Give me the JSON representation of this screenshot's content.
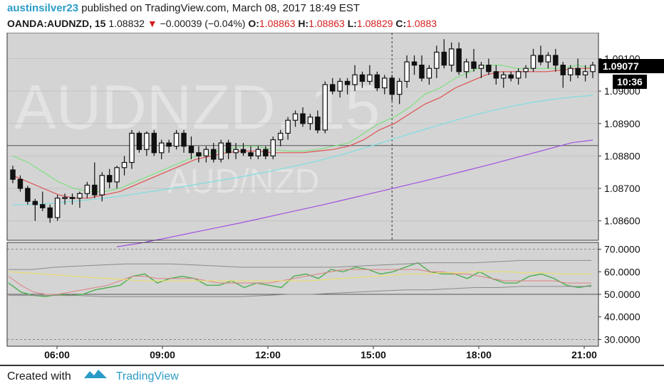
{
  "header": {
    "author": "austinsilver23",
    "published_text": "published on TradingView.com, March 08, 2017 18:49 EST",
    "symbol": "OANDA:AUDNZD, 15",
    "last": "1.08832",
    "change": "−0.00039 (−0.04%)",
    "o_label": "O:",
    "o_value": "1.08863",
    "h_label": "H:",
    "h_value": "1.08863",
    "l_label": "L:",
    "l_value": "1.08829",
    "c_label": "C:",
    "c_value": "1.0883"
  },
  "watermark": {
    "main": "AUDNZD, 15",
    "sub": "AUD/NZD"
  },
  "footer": {
    "created_with": "Created with",
    "brand": "TradingView"
  },
  "colors": {
    "up": "#111111",
    "down": "#111111",
    "ema_fast": "#7ee07e",
    "ema_mid": "#e05050",
    "ema_slow": "#7fdde0",
    "ema_long": "#a050e0",
    "rsi": "#4caf50",
    "rsi_signal": "#e08080",
    "rsi_mid": "#f0e060",
    "band": "#8a8a8a",
    "price_label_bg": "#000000",
    "pane_bg": "#d4d4d4"
  },
  "chart_data": [
    {
      "type": "candlestick",
      "title": "OANDA:AUDNZD, 15",
      "y_ticks": [
        "1.09100",
        "1.09000",
        "1.08900",
        "1.08800",
        "1.08700",
        "1.08600"
      ],
      "x_ticks": [
        "06:00",
        "09:00",
        "12:00",
        "15:00",
        "18:00",
        "21:00"
      ],
      "ylim": [
        1.0854,
        1.0918
      ],
      "last_price_label": "1.09077",
      "countdown_label": "10:36",
      "horizontal_line": 1.08832,
      "crosshair_time": 51,
      "candles": [
        [
          1.08757,
          1.0877,
          1.08716,
          1.08728
        ],
        [
          1.08728,
          1.0874,
          1.0869,
          1.087
        ],
        [
          1.087,
          1.08708,
          1.0865,
          1.0866
        ],
        [
          1.0866,
          1.08668,
          1.086,
          1.0865
        ],
        [
          1.0865,
          1.0869,
          1.0863,
          1.0864
        ],
        [
          1.0864,
          1.0865,
          1.08594,
          1.0861
        ],
        [
          1.0861,
          1.0868,
          1.086,
          1.0867
        ],
        [
          1.0867,
          1.08684,
          1.0865,
          1.08672
        ],
        [
          1.08672,
          1.08684,
          1.0865,
          1.0867
        ],
        [
          1.0867,
          1.0869,
          1.0864,
          1.08684
        ],
        [
          1.08684,
          1.0872,
          1.0867,
          1.0871
        ],
        [
          1.0871,
          1.0878,
          1.0867,
          1.0868
        ],
        [
          1.0868,
          1.0875,
          1.0866,
          1.0874
        ],
        [
          1.0874,
          1.0876,
          1.087,
          1.0872
        ],
        [
          1.0872,
          1.0877,
          1.087,
          1.08764
        ],
        [
          1.08764,
          1.088,
          1.0874,
          1.0878
        ],
        [
          1.0878,
          1.0888,
          1.0876,
          1.0887
        ],
        [
          1.0887,
          1.08876,
          1.0881,
          1.0882
        ],
        [
          1.0882,
          1.08876,
          1.088,
          1.0887
        ],
        [
          1.0887,
          1.0888,
          1.088,
          1.0881
        ],
        [
          1.0881,
          1.0885,
          1.0879,
          1.0884
        ],
        [
          1.0884,
          1.0885,
          1.0881,
          1.0883
        ],
        [
          1.0883,
          1.0888,
          1.0882,
          1.0887
        ],
        [
          1.0887,
          1.0888,
          1.0881,
          1.0883
        ],
        [
          1.0883,
          1.0886,
          1.0879,
          1.0881
        ],
        [
          1.0881,
          1.0883,
          1.0878,
          1.088
        ],
        [
          1.088,
          1.0883,
          1.0878,
          1.0882
        ],
        [
          1.0882,
          1.0884,
          1.0878,
          1.0879
        ],
        [
          1.0879,
          1.0885,
          1.0878,
          1.0884
        ],
        [
          1.0884,
          1.0885,
          1.0879,
          1.0881
        ],
        [
          1.0881,
          1.0884,
          1.0879,
          1.0882
        ],
        [
          1.0882,
          1.0884,
          1.088,
          1.0881
        ],
        [
          1.0881,
          1.0883,
          1.0879,
          1.088
        ],
        [
          1.088,
          1.0883,
          1.0879,
          1.0882
        ],
        [
          1.0882,
          1.0883,
          1.0879,
          1.088
        ],
        [
          1.088,
          1.0886,
          1.0879,
          1.0885
        ],
        [
          1.0885,
          1.0888,
          1.0883,
          1.0887
        ],
        [
          1.0887,
          1.0892,
          1.0885,
          1.0891
        ],
        [
          1.0891,
          1.0894,
          1.0889,
          1.0893
        ],
        [
          1.0893,
          1.0895,
          1.0889,
          1.089
        ],
        [
          1.089,
          1.0893,
          1.0888,
          1.0892
        ],
        [
          1.0892,
          1.0894,
          1.0887,
          1.0888
        ],
        [
          1.0888,
          1.0903,
          1.0887,
          1.0902
        ],
        [
          1.0902,
          1.0904,
          1.0899,
          1.09
        ],
        [
          1.09,
          1.0904,
          1.0898,
          1.0903
        ],
        [
          1.0903,
          1.0904,
          1.0899,
          1.0902
        ],
        [
          1.0902,
          1.0908,
          1.09,
          1.0905
        ],
        [
          1.0905,
          1.0906,
          1.0901,
          1.0903
        ],
        [
          1.0903,
          1.0908,
          1.0902,
          1.0905
        ],
        [
          1.0905,
          1.0906,
          1.09,
          1.0901
        ],
        [
          1.0901,
          1.0905,
          1.0899,
          1.0904
        ],
        [
          1.0904,
          1.0905,
          1.0897,
          1.0899
        ],
        [
          1.0899,
          1.0904,
          1.0896,
          1.0903
        ],
        [
          1.0903,
          1.0911,
          1.0901,
          1.0909
        ],
        [
          1.0909,
          1.0911,
          1.0905,
          1.0908
        ],
        [
          1.0908,
          1.0911,
          1.0903,
          1.0904
        ],
        [
          1.0904,
          1.0908,
          1.0902,
          1.0907
        ],
        [
          1.0907,
          1.0914,
          1.0904,
          1.0912
        ],
        [
          1.0912,
          1.0916,
          1.0907,
          1.0908
        ],
        [
          1.0908,
          1.0915,
          1.0906,
          1.0913
        ],
        [
          1.0913,
          1.0915,
          1.0905,
          1.0906
        ],
        [
          1.0906,
          1.091,
          1.0904,
          1.0909
        ],
        [
          1.0909,
          1.0913,
          1.0906,
          1.0907
        ],
        [
          1.0907,
          1.0909,
          1.0904,
          1.0908
        ],
        [
          1.0908,
          1.091,
          1.0905,
          1.0906
        ],
        [
          1.0906,
          1.0908,
          1.0902,
          1.0904
        ],
        [
          1.0904,
          1.0906,
          1.0901,
          1.0905
        ],
        [
          1.0905,
          1.0906,
          1.0903,
          1.0904
        ],
        [
          1.0904,
          1.0907,
          1.0902,
          1.0906
        ],
        [
          1.0906,
          1.0908,
          1.0904,
          1.0907
        ],
        [
          1.0907,
          1.0913,
          1.0906,
          1.0911
        ],
        [
          1.0911,
          1.0914,
          1.0908,
          1.0909
        ],
        [
          1.0909,
          1.0912,
          1.0907,
          1.0911
        ],
        [
          1.0911,
          1.0913,
          1.0906,
          1.0908
        ],
        [
          1.0908,
          1.0909,
          1.0901,
          1.0905
        ],
        [
          1.0905,
          1.0908,
          1.0903,
          1.0907
        ],
        [
          1.0907,
          1.091,
          1.0904,
          1.0905
        ],
        [
          1.0905,
          1.0908,
          1.0903,
          1.0906
        ],
        [
          1.0906,
          1.0909,
          1.0904,
          1.0908
        ]
      ],
      "series": [
        {
          "values": [
            1.088,
            1.0878,
            1.0875,
            1.0872,
            1.087,
            1.0869,
            1.0869,
            1.087,
            1.0872,
            1.0874,
            1.0876,
            1.0878,
            1.088,
            1.0881,
            1.0882,
            1.0883,
            1.0883,
            1.0882,
            1.08815,
            1.08815,
            1.0882,
            1.0883,
            1.0884,
            1.0887,
            1.089,
            1.0892,
            1.0895,
            1.0899,
            1.0901,
            1.0904,
            1.0906,
            1.0908,
            1.0908,
            1.0907,
            1.0907,
            1.0907,
            1.0907,
            1.0908,
            1.0907
          ]
        },
        {
          "values": [
            1.0874,
            1.0872,
            1.087,
            1.0868,
            1.0867,
            1.0867,
            1.0868,
            1.0869,
            1.0871,
            1.0873,
            1.0875,
            1.0877,
            1.0879,
            1.088,
            1.0881,
            1.08815,
            1.08815,
            1.0881,
            1.0881,
            1.0881,
            1.08815,
            1.0882,
            1.0883,
            1.0885,
            1.0888,
            1.089,
            1.0893,
            1.0896,
            1.0898,
            1.0901,
            1.0903,
            1.0905,
            1.0906,
            1.0906,
            1.0906,
            1.0906,
            1.09065,
            1.0907,
            1.0907
          ]
        },
        {
          "values": [
            1.0865,
            1.0865,
            1.08652,
            1.08656,
            1.0866,
            1.08665,
            1.0867,
            1.08676,
            1.08683,
            1.0869,
            1.08697,
            1.08704,
            1.08712,
            1.0872,
            1.08728,
            1.08736,
            1.08745,
            1.08754,
            1.08764,
            1.08774,
            1.08785,
            1.08797,
            1.0881,
            1.08824,
            1.08838,
            1.08853,
            1.08868,
            1.08882,
            1.08896,
            1.0891,
            1.08923,
            1.08935,
            1.08946,
            1.08956,
            1.08965,
            1.08972,
            1.08978,
            1.08983,
            1.08987
          ]
        },
        {
          "values": [
            1.0852,
            1.0853,
            1.08542,
            1.08555,
            1.08568,
            1.08581,
            1.08594,
            1.08608,
            1.08622,
            1.08636,
            1.0865,
            1.08665,
            1.0868,
            1.08695,
            1.0871,
            1.08725,
            1.08741,
            1.08757,
            1.08773,
            1.0879,
            1.08807,
            1.08824,
            1.08841,
            1.08849
          ]
        }
      ]
    },
    {
      "type": "line",
      "y_ticks": [
        "70.0000",
        "60.0000",
        "50.0000",
        "40.0000",
        "30.0000"
      ],
      "ylim": [
        27,
        73
      ],
      "levels": [
        70,
        50,
        30
      ],
      "series": [
        {
          "values": [
            55,
            51,
            49.5,
            49,
            50,
            49.5,
            50,
            52,
            53,
            54,
            58,
            59,
            55,
            57,
            58,
            57,
            54,
            54,
            56,
            53,
            55,
            54,
            53,
            58,
            59,
            57,
            61,
            60,
            62,
            61,
            59,
            60,
            62,
            64,
            60,
            59,
            59,
            57,
            60,
            57,
            55,
            55,
            58,
            59,
            57,
            54,
            53,
            54
          ]
        },
        {
          "values": [
            58,
            54,
            51,
            50,
            50,
            51,
            52,
            53,
            54,
            56,
            58,
            58,
            57,
            57,
            57,
            57,
            56,
            55,
            55,
            55,
            55,
            55,
            56,
            57,
            58,
            59,
            60,
            61,
            61,
            61,
            61,
            61,
            61,
            61,
            60,
            60,
            59,
            59,
            58,
            57,
            56,
            56,
            56,
            56,
            56,
            55,
            55,
            55
          ]
        },
        {
          "values": [
            60,
            59.5,
            59,
            58.5,
            58,
            57.5,
            57,
            56.5,
            56,
            56,
            56,
            56,
            56,
            56,
            56,
            56,
            56,
            56,
            56,
            56.5,
            57,
            57.5,
            58,
            58.5,
            59,
            59,
            59.5,
            59.5,
            60,
            60,
            60,
            59.5,
            59.5,
            59,
            59,
            59
          ]
        },
        {
          "values": [
            61,
            61,
            62,
            62.5,
            63,
            63.5,
            63.5,
            63.5,
            63,
            62.5,
            62,
            62,
            62,
            62,
            62,
            62.5,
            63,
            63.5,
            64,
            64,
            64,
            64.5,
            65,
            65,
            65,
            65
          ]
        },
        {
          "values": [
            49.5,
            49.5,
            49.5,
            49.5,
            49,
            49,
            49,
            49,
            49,
            49,
            49,
            49.5,
            50,
            50,
            50.5,
            51,
            51.5,
            52,
            52,
            52.5,
            53,
            53,
            53.5,
            53.5,
            53.5,
            53.5
          ]
        }
      ]
    }
  ]
}
